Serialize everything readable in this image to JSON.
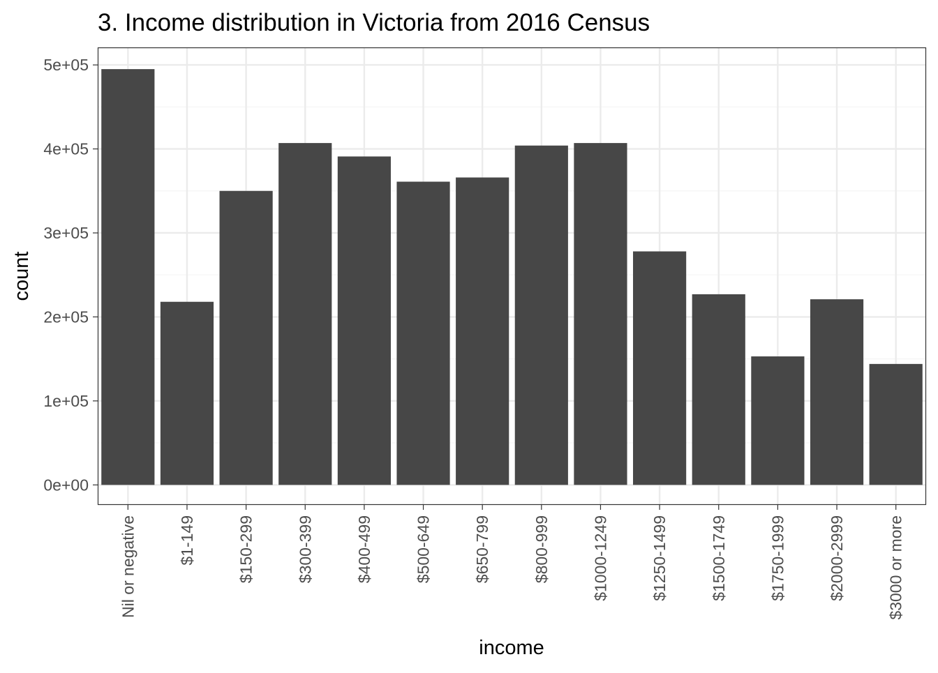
{
  "chart_data": {
    "type": "bar",
    "title": "3. Income distribution in Victoria from 2016 Census",
    "xlabel": "income",
    "ylabel": "count",
    "categories": [
      "Nil or negative",
      "$1-149",
      "$150-299",
      "$300-399",
      "$400-499",
      "$500-649",
      "$650-799",
      "$800-999",
      "$1000-1249",
      "$1250-1499",
      "$1500-1749",
      "$1750-1999",
      "$2000-2999",
      "$3000 or more"
    ],
    "values": [
      495000,
      218000,
      350000,
      407000,
      391000,
      361000,
      366000,
      404000,
      407000,
      278000,
      227000,
      153000,
      221000,
      144000
    ],
    "ylim": [
      -23000,
      520000
    ],
    "yticks": [
      0,
      100000,
      200000,
      300000,
      400000,
      500000
    ],
    "ytick_labels": [
      "0e+00",
      "1e+05",
      "2e+05",
      "3e+05",
      "4e+05",
      "5e+05"
    ],
    "grid": true,
    "theme": "bw",
    "colors": {
      "bar": "#474747",
      "grid_major": "#ebebeb",
      "grid_minor": "#f5f5f5",
      "panel_border": "#333333",
      "text": "#000000",
      "tick_text": "#4d4d4d"
    }
  }
}
